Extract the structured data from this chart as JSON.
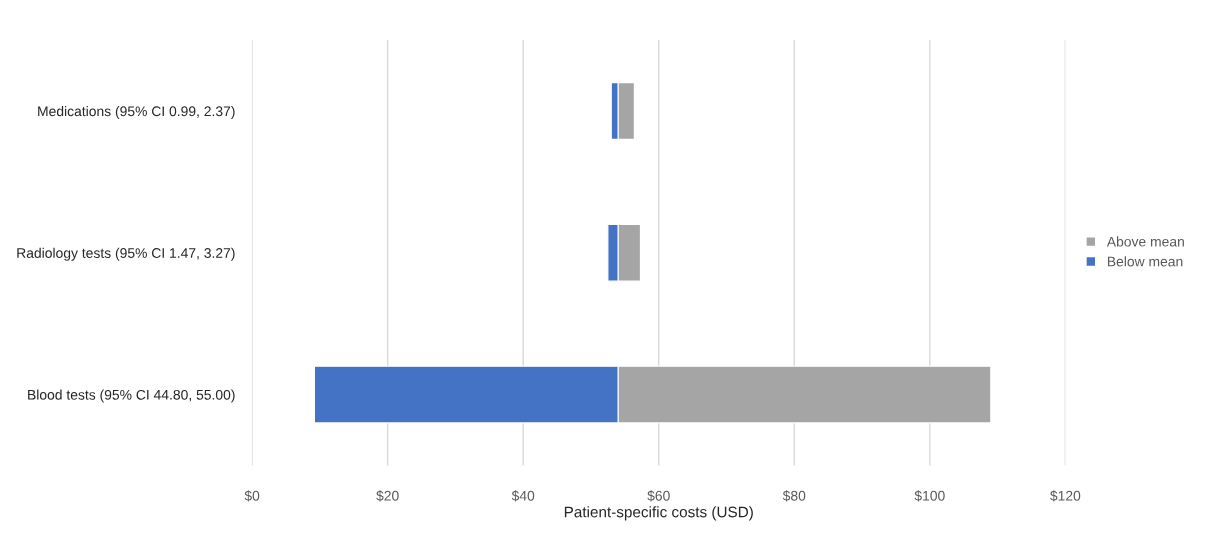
{
  "chart_data": {
    "type": "bar",
    "orientation": "horizontal",
    "xlabel": "Patient-specific costs (USD)",
    "categories": [
      "Medications (95% CI 0.99, 2.37)",
      "Radiology tests (95% CI 1.47, 3.27)",
      "Blood tests (95% CI 44.80, 55.00)"
    ],
    "series": [
      {
        "name": "Above mean",
        "color": "#a5a5a5",
        "base": [
          54,
          54,
          54
        ],
        "values": [
          2.4,
          3.3,
          55.0
        ]
      },
      {
        "name": "Below mean",
        "color": "#4472c4",
        "base": [
          53.0,
          52.5,
          9.2
        ],
        "values": [
          1.0,
          1.5,
          44.8
        ]
      }
    ],
    "xlim": [
      0,
      120
    ],
    "xticks": [
      {
        "value": 0,
        "label": "$0"
      },
      {
        "value": 20,
        "label": "$20"
      },
      {
        "value": 40,
        "label": "$40"
      },
      {
        "value": 60,
        "label": "$60"
      },
      {
        "value": 80,
        "label": "$80"
      },
      {
        "value": 100,
        "label": "$100"
      },
      {
        "value": 120,
        "label": "$120"
      }
    ],
    "grid": "x",
    "legend": "right"
  }
}
